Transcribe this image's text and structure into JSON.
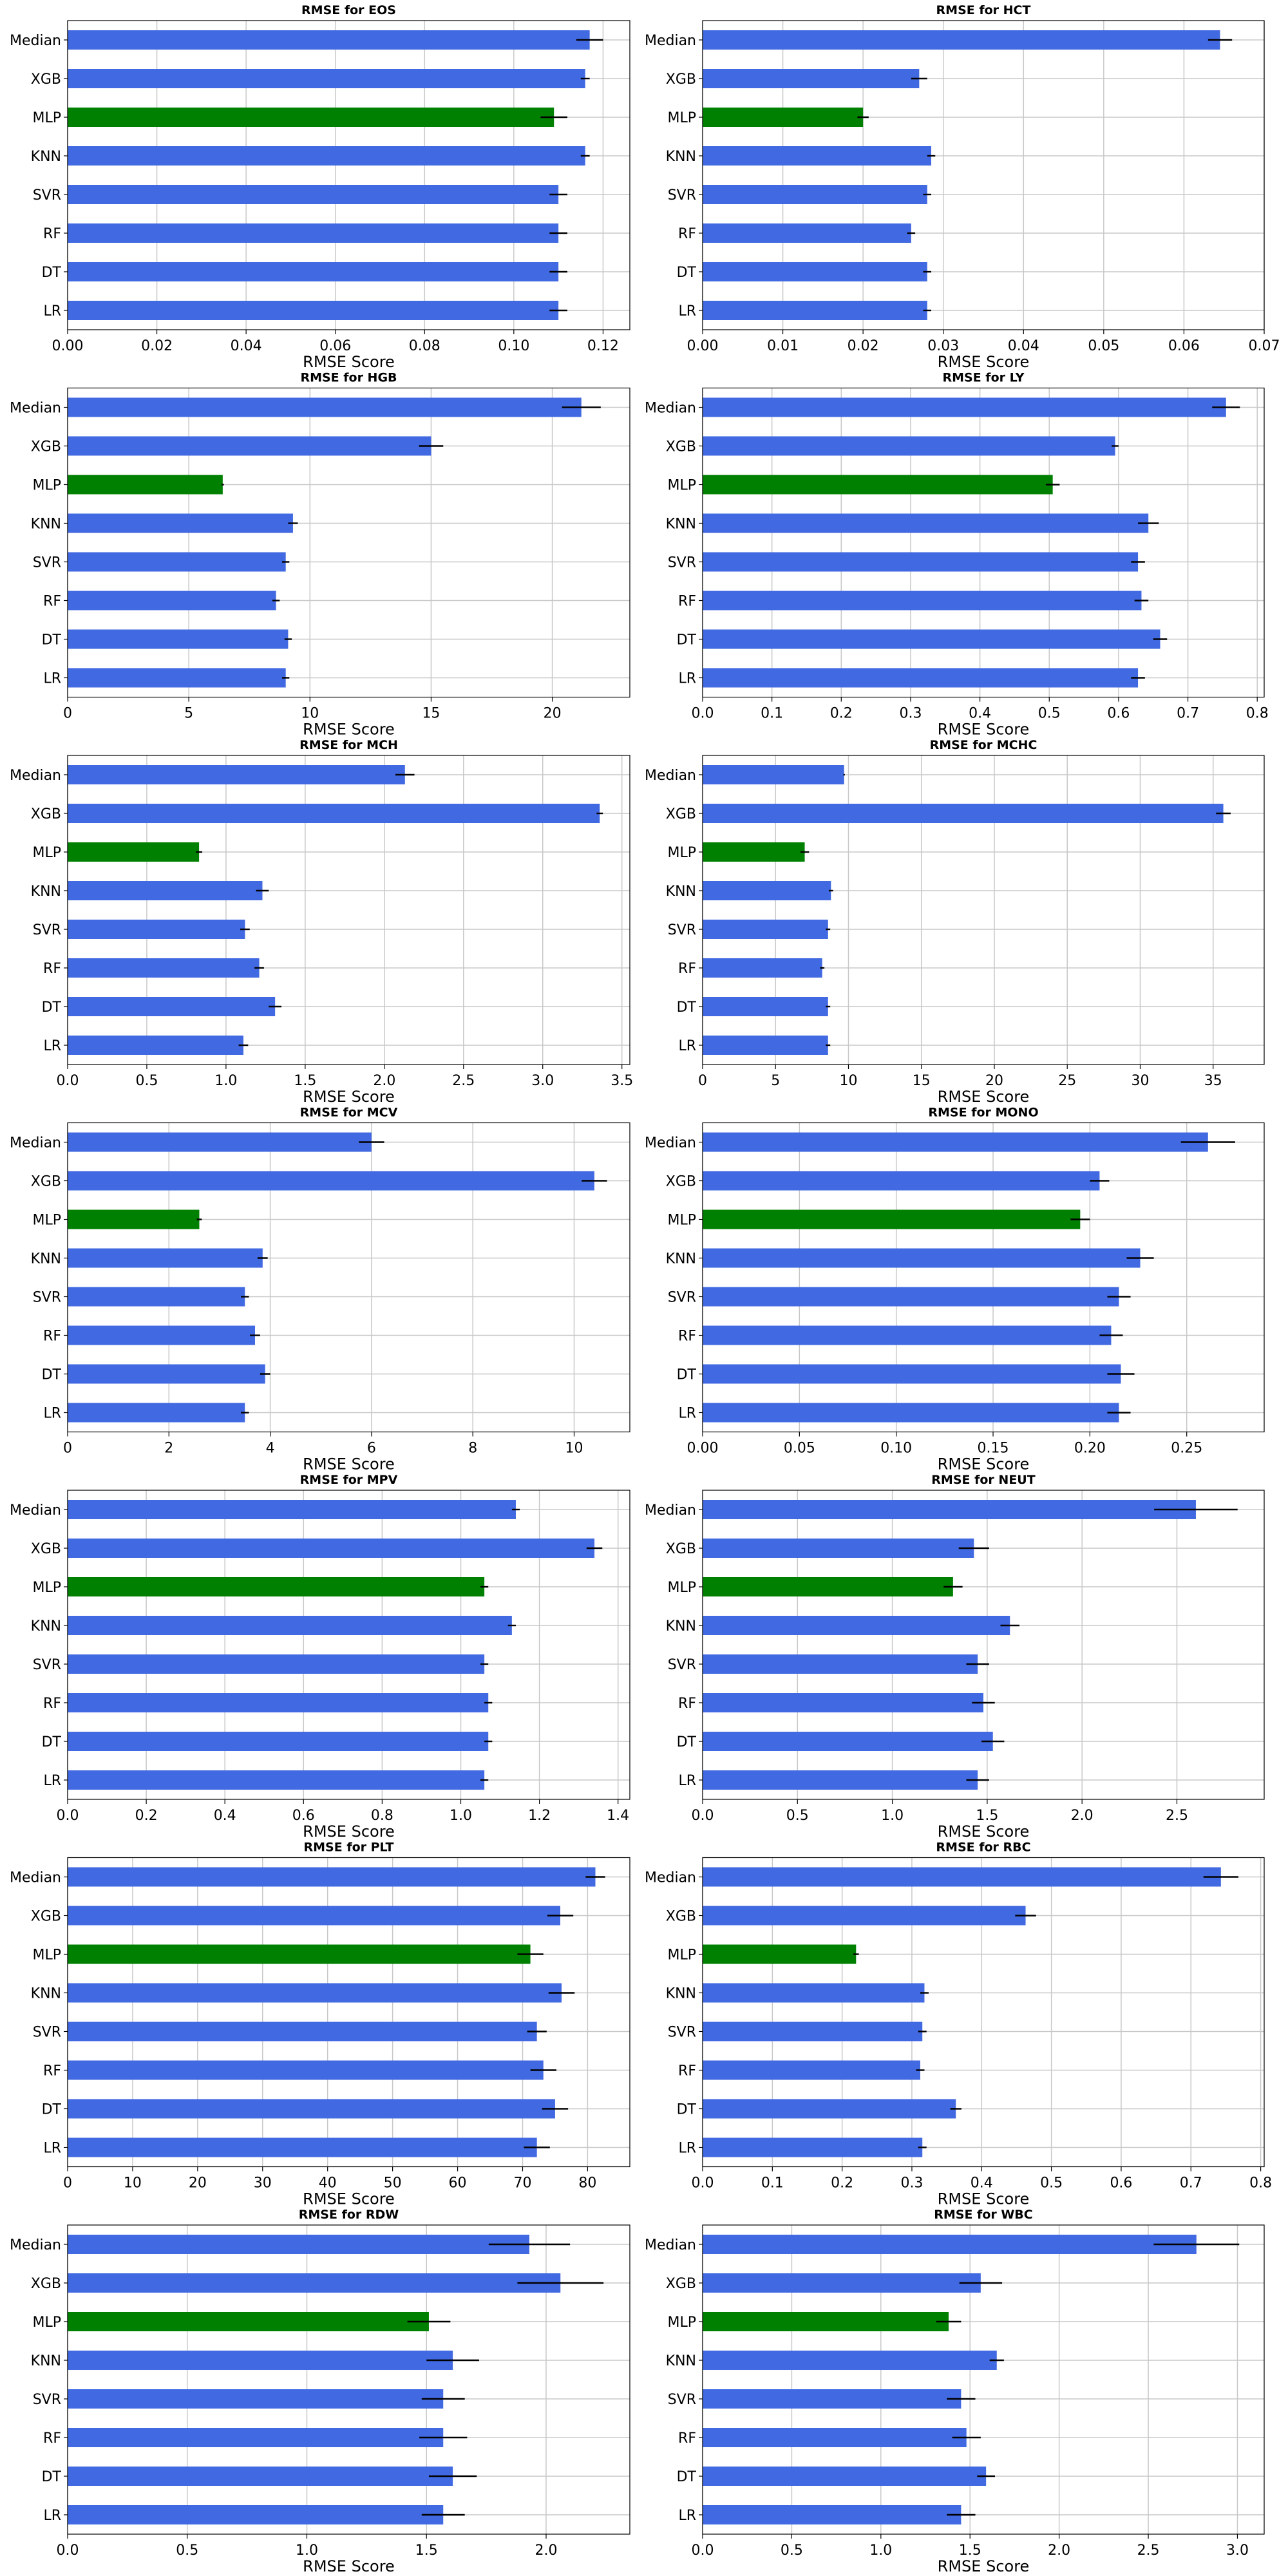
{
  "colors": {
    "default_bar": "#4169e1",
    "highlight_bar": "#008000",
    "error_bar": "#000000",
    "grid": "#c8c8c8"
  },
  "chart_data": [
    {
      "type": "bar",
      "orientation": "horizontal",
      "title": "RMSE for EOS",
      "xlabel": "RMSE Score",
      "categories": [
        "Median",
        "XGB",
        "MLP",
        "KNN",
        "SVR",
        "RF",
        "DT",
        "LR"
      ],
      "highlight": "MLP",
      "values": [
        0.117,
        0.116,
        0.109,
        0.116,
        0.11,
        0.11,
        0.11,
        0.11
      ],
      "errors": [
        0.003,
        0.001,
        0.003,
        0.001,
        0.002,
        0.002,
        0.002,
        0.002
      ],
      "xlim": [
        0,
        0.126
      ],
      "xticks": [
        0.0,
        0.02,
        0.04,
        0.06,
        0.08,
        0.1,
        0.12
      ],
      "xtick_labels": [
        "0.00",
        "0.02",
        "0.04",
        "0.06",
        "0.08",
        "0.10",
        "0.12"
      ],
      "grid": true
    },
    {
      "type": "bar",
      "orientation": "horizontal",
      "title": "RMSE for HCT",
      "xlabel": "RMSE Score",
      "categories": [
        "Median",
        "XGB",
        "MLP",
        "KNN",
        "SVR",
        "RF",
        "DT",
        "LR"
      ],
      "highlight": "MLP",
      "values": [
        0.0645,
        0.027,
        0.02,
        0.0285,
        0.028,
        0.026,
        0.028,
        0.028
      ],
      "errors": [
        0.0015,
        0.001,
        0.0007,
        0.0005,
        0.0005,
        0.0005,
        0.0005,
        0.0005
      ],
      "xlim": [
        0,
        0.07
      ],
      "xticks": [
        0,
        0.01,
        0.02,
        0.03,
        0.04,
        0.05,
        0.06,
        0.07
      ],
      "xtick_labels": [
        "0.00",
        "0.01",
        "0.02",
        "0.03",
        "0.04",
        "0.05",
        "0.06",
        "0.07"
      ],
      "grid": true
    },
    {
      "type": "bar",
      "orientation": "horizontal",
      "title": "RMSE for HGB",
      "xlabel": "RMSE Score",
      "categories": [
        "Median",
        "XGB",
        "MLP",
        "KNN",
        "SVR",
        "RF",
        "DT",
        "LR"
      ],
      "highlight": "MLP",
      "values": [
        21.2,
        15.0,
        6.4,
        9.3,
        9.0,
        8.6,
        9.1,
        9.0
      ],
      "errors": [
        0.8,
        0.5,
        0.05,
        0.2,
        0.15,
        0.15,
        0.15,
        0.15
      ],
      "xlim": [
        0,
        23.2
      ],
      "xticks": [
        0,
        5,
        10,
        15,
        20
      ],
      "xtick_labels": [
        "0",
        "5",
        "10",
        "15",
        "20"
      ],
      "grid": true
    },
    {
      "type": "bar",
      "orientation": "horizontal",
      "title": "RMSE for LY",
      "xlabel": "RMSE Score",
      "categories": [
        "Median",
        "XGB",
        "MLP",
        "KNN",
        "SVR",
        "RF",
        "DT",
        "LR"
      ],
      "highlight": "MLP",
      "values": [
        0.755,
        0.595,
        0.505,
        0.643,
        0.628,
        0.633,
        0.66,
        0.628
      ],
      "errors": [
        0.02,
        0.005,
        0.01,
        0.015,
        0.01,
        0.01,
        0.01,
        0.01
      ],
      "xlim": [
        0,
        0.81
      ],
      "xticks": [
        0,
        0.1,
        0.2,
        0.3,
        0.4,
        0.5,
        0.6,
        0.7,
        0.8
      ],
      "xtick_labels": [
        "0.0",
        "0.1",
        "0.2",
        "0.3",
        "0.4",
        "0.5",
        "0.6",
        "0.7",
        "0.8"
      ],
      "grid": true
    },
    {
      "type": "bar",
      "orientation": "horizontal",
      "title": "RMSE for MCH",
      "xlabel": "RMSE Score",
      "categories": [
        "Median",
        "XGB",
        "MLP",
        "KNN",
        "SVR",
        "RF",
        "DT",
        "LR"
      ],
      "highlight": "MLP",
      "values": [
        2.13,
        3.36,
        0.83,
        1.23,
        1.12,
        1.21,
        1.31,
        1.11
      ],
      "errors": [
        0.06,
        0.02,
        0.02,
        0.04,
        0.03,
        0.03,
        0.04,
        0.03
      ],
      "xlim": [
        0,
        3.55
      ],
      "xticks": [
        0,
        0.5,
        1.0,
        1.5,
        2.0,
        2.5,
        3.0,
        3.5
      ],
      "xtick_labels": [
        "0.0",
        "0.5",
        "1.0",
        "1.5",
        "2.0",
        "2.5",
        "3.0",
        "3.5"
      ],
      "grid": true
    },
    {
      "type": "bar",
      "orientation": "horizontal",
      "title": "RMSE for MCHC",
      "xlabel": "RMSE Score",
      "categories": [
        "Median",
        "XGB",
        "MLP",
        "KNN",
        "SVR",
        "RF",
        "DT",
        "LR"
      ],
      "highlight": "MLP",
      "values": [
        9.7,
        35.7,
        7.0,
        8.8,
        8.6,
        8.2,
        8.6,
        8.6
      ],
      "errors": [
        0.05,
        0.5,
        0.3,
        0.15,
        0.15,
        0.15,
        0.15,
        0.15
      ],
      "xlim": [
        0,
        38.5
      ],
      "xticks": [
        0,
        5,
        10,
        15,
        20,
        25,
        30,
        35
      ],
      "xtick_labels": [
        "0",
        "5",
        "10",
        "15",
        "20",
        "25",
        "30",
        "35"
      ],
      "grid": true
    },
    {
      "type": "bar",
      "orientation": "horizontal",
      "title": "RMSE for MCV",
      "xlabel": "RMSE Score",
      "categories": [
        "Median",
        "XGB",
        "MLP",
        "KNN",
        "SVR",
        "RF",
        "DT",
        "LR"
      ],
      "highlight": "MLP",
      "values": [
        6.0,
        10.4,
        2.6,
        3.85,
        3.5,
        3.7,
        3.9,
        3.5
      ],
      "errors": [
        0.25,
        0.25,
        0.05,
        0.1,
        0.08,
        0.1,
        0.1,
        0.08
      ],
      "xlim": [
        0,
        11.1
      ],
      "xticks": [
        0,
        2,
        4,
        6,
        8,
        10
      ],
      "xtick_labels": [
        "0",
        "2",
        "4",
        "6",
        "8",
        "10"
      ],
      "grid": true
    },
    {
      "type": "bar",
      "orientation": "horizontal",
      "title": "RMSE for MONO",
      "xlabel": "RMSE Score",
      "categories": [
        "Median",
        "XGB",
        "MLP",
        "KNN",
        "SVR",
        "RF",
        "DT",
        "LR"
      ],
      "highlight": "MLP",
      "values": [
        0.261,
        0.205,
        0.195,
        0.226,
        0.215,
        0.211,
        0.216,
        0.215
      ],
      "errors": [
        0.014,
        0.005,
        0.005,
        0.007,
        0.006,
        0.006,
        0.007,
        0.006
      ],
      "xlim": [
        0,
        0.29
      ],
      "xticks": [
        0,
        0.05,
        0.1,
        0.15,
        0.2,
        0.25
      ],
      "xtick_labels": [
        "0.00",
        "0.05",
        "0.10",
        "0.15",
        "0.20",
        "0.25"
      ],
      "grid": true
    },
    {
      "type": "bar",
      "orientation": "horizontal",
      "title": "RMSE for MPV",
      "xlabel": "RMSE Score",
      "categories": [
        "Median",
        "XGB",
        "MLP",
        "KNN",
        "SVR",
        "RF",
        "DT",
        "LR"
      ],
      "highlight": "MLP",
      "values": [
        1.14,
        1.34,
        1.06,
        1.13,
        1.06,
        1.07,
        1.07,
        1.06
      ],
      "errors": [
        0.01,
        0.02,
        0.01,
        0.01,
        0.01,
        0.01,
        0.01,
        0.01
      ],
      "xlim": [
        0,
        1.43
      ],
      "xticks": [
        0,
        0.2,
        0.4,
        0.6,
        0.8,
        1.0,
        1.2,
        1.4
      ],
      "xtick_labels": [
        "0.0",
        "0.2",
        "0.4",
        "0.6",
        "0.8",
        "1.0",
        "1.2",
        "1.4"
      ],
      "grid": true
    },
    {
      "type": "bar",
      "orientation": "horizontal",
      "title": "RMSE for NEUT",
      "xlabel": "RMSE Score",
      "categories": [
        "Median",
        "XGB",
        "MLP",
        "KNN",
        "SVR",
        "RF",
        "DT",
        "LR"
      ],
      "highlight": "MLP",
      "values": [
        2.6,
        1.43,
        1.32,
        1.62,
        1.45,
        1.48,
        1.53,
        1.45
      ],
      "errors": [
        0.22,
        0.08,
        0.05,
        0.05,
        0.06,
        0.06,
        0.06,
        0.06
      ],
      "xlim": [
        0,
        2.96
      ],
      "xticks": [
        0,
        0.5,
        1.0,
        1.5,
        2.0,
        2.5
      ],
      "xtick_labels": [
        "0.0",
        "0.5",
        "1.0",
        "1.5",
        "2.0",
        "2.5"
      ],
      "grid": true
    },
    {
      "type": "bar",
      "orientation": "horizontal",
      "title": "RMSE for PLT",
      "xlabel": "RMSE Score",
      "categories": [
        "Median",
        "XGB",
        "MLP",
        "KNN",
        "SVR",
        "RF",
        "DT",
        "LR"
      ],
      "highlight": "MLP",
      "values": [
        81.2,
        75.8,
        71.2,
        76.0,
        72.2,
        73.2,
        75.0,
        72.2
      ],
      "errors": [
        1.5,
        2.0,
        2.0,
        2.0,
        1.5,
        2.0,
        2.0,
        2.0
      ],
      "xlim": [
        0,
        86.5
      ],
      "xticks": [
        0,
        10,
        20,
        30,
        40,
        50,
        60,
        70,
        80
      ],
      "xtick_labels": [
        "0",
        "10",
        "20",
        "30",
        "40",
        "50",
        "60",
        "70",
        "80"
      ],
      "grid": true
    },
    {
      "type": "bar",
      "orientation": "horizontal",
      "title": "RMSE for RBC",
      "xlabel": "RMSE Score",
      "categories": [
        "Median",
        "XGB",
        "MLP",
        "KNN",
        "SVR",
        "RF",
        "DT",
        "LR"
      ],
      "highlight": "MLP",
      "values": [
        0.743,
        0.463,
        0.22,
        0.318,
        0.315,
        0.312,
        0.363,
        0.315
      ],
      "errors": [
        0.025,
        0.015,
        0.004,
        0.006,
        0.006,
        0.006,
        0.008,
        0.006
      ],
      "xlim": [
        0,
        0.805
      ],
      "xticks": [
        0,
        0.1,
        0.2,
        0.3,
        0.4,
        0.5,
        0.6,
        0.7,
        0.8
      ],
      "xtick_labels": [
        "0.0",
        "0.1",
        "0.2",
        "0.3",
        "0.4",
        "0.5",
        "0.6",
        "0.7",
        "0.8"
      ],
      "grid": true
    },
    {
      "type": "bar",
      "orientation": "horizontal",
      "title": "RMSE for RDW",
      "xlabel": "RMSE Score",
      "categories": [
        "Median",
        "XGB",
        "MLP",
        "KNN",
        "SVR",
        "RF",
        "DT",
        "LR"
      ],
      "highlight": "MLP",
      "values": [
        1.93,
        2.06,
        1.51,
        1.61,
        1.57,
        1.57,
        1.61,
        1.57
      ],
      "errors": [
        0.17,
        0.18,
        0.09,
        0.11,
        0.09,
        0.1,
        0.1,
        0.09
      ],
      "xlim": [
        0,
        2.35
      ],
      "xticks": [
        0,
        0.5,
        1.0,
        1.5,
        2.0
      ],
      "xtick_labels": [
        "0.0",
        "0.5",
        "1.0",
        "1.5",
        "2.0"
      ],
      "grid": true
    },
    {
      "type": "bar",
      "orientation": "horizontal",
      "title": "RMSE for WBC",
      "xlabel": "RMSE Score",
      "categories": [
        "Median",
        "XGB",
        "MLP",
        "KNN",
        "SVR",
        "RF",
        "DT",
        "LR"
      ],
      "highlight": "MLP",
      "values": [
        2.77,
        1.56,
        1.38,
        1.65,
        1.45,
        1.48,
        1.59,
        1.45
      ],
      "errors": [
        0.24,
        0.12,
        0.07,
        0.04,
        0.08,
        0.08,
        0.05,
        0.08
      ],
      "xlim": [
        0,
        3.15
      ],
      "xticks": [
        0,
        0.5,
        1.0,
        1.5,
        2.0,
        2.5,
        3.0
      ],
      "xtick_labels": [
        "0.0",
        "0.5",
        "1.0",
        "1.5",
        "2.0",
        "2.5",
        "3.0"
      ],
      "grid": true
    }
  ]
}
